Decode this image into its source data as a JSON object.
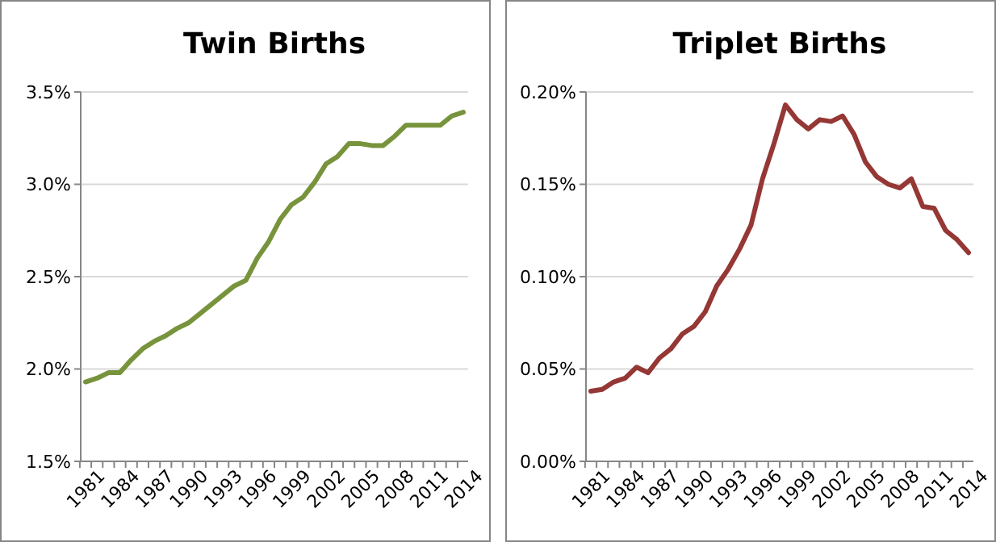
{
  "chart_data": [
    {
      "type": "line",
      "title": "Twin Births",
      "categories": [
        "1981",
        null,
        null,
        "1984",
        null,
        null,
        "1987",
        null,
        null,
        "1990",
        null,
        null,
        "1993",
        null,
        null,
        "1996",
        null,
        null,
        "1999",
        null,
        null,
        "2002",
        null,
        null,
        "2005",
        null,
        null,
        "2008",
        null,
        null,
        "2011",
        null,
        null,
        "2014"
      ],
      "series": [
        {
          "color": "#77933c",
          "values": [
            1.93,
            1.95,
            1.98,
            1.98,
            2.05,
            2.11,
            2.15,
            2.18,
            2.22,
            2.25,
            2.3,
            2.35,
            2.4,
            2.45,
            2.48,
            2.6,
            2.69,
            2.81,
            2.89,
            2.93,
            3.01,
            3.11,
            3.15,
            3.22,
            3.22,
            3.21,
            3.21,
            3.26,
            3.32,
            3.32,
            3.32,
            3.32,
            3.37,
            3.39
          ]
        }
      ],
      "ylim": [
        1.5,
        3.5
      ],
      "yticks": [
        {
          "value": 1.5,
          "label": "1.5%"
        },
        {
          "value": 2.0,
          "label": "2.0%"
        },
        {
          "value": 2.5,
          "label": "2.5%"
        },
        {
          "value": 3.0,
          "label": "3.0%"
        },
        {
          "value": 3.5,
          "label": "3.5%"
        }
      ],
      "grid": "y",
      "marker": "none",
      "line_style": "solid"
    },
    {
      "type": "line",
      "title": "Triplet Births",
      "categories": [
        "1981",
        null,
        null,
        "1984",
        null,
        null,
        "1987",
        null,
        null,
        "1990",
        null,
        null,
        "1993",
        null,
        null,
        "1996",
        null,
        null,
        "1999",
        null,
        null,
        "2002",
        null,
        null,
        "2005",
        null,
        null,
        "2008",
        null,
        null,
        "2011",
        null,
        null,
        "2014"
      ],
      "series": [
        {
          "color": "#953735",
          "values": [
            0.038,
            0.039,
            0.043,
            0.045,
            0.051,
            0.048,
            0.056,
            0.061,
            0.069,
            0.073,
            0.081,
            0.095,
            0.104,
            0.115,
            0.128,
            0.153,
            0.172,
            0.193,
            0.185,
            0.18,
            0.185,
            0.184,
            0.187,
            0.177,
            0.162,
            0.154,
            0.15,
            0.148,
            0.153,
            0.138,
            0.137,
            0.125,
            0.12,
            0.113
          ]
        }
      ],
      "ylim": [
        0,
        0.2
      ],
      "yticks": [
        {
          "value": 0,
          "label": "0.00%"
        },
        {
          "value": 0.05,
          "label": "0.05%"
        },
        {
          "value": 0.1,
          "label": "0.10%"
        },
        {
          "value": 0.15,
          "label": "0.15%"
        },
        {
          "value": 0.2,
          "label": "0.20%"
        }
      ],
      "grid": "y",
      "marker": "none",
      "line_style": "solid"
    }
  ]
}
